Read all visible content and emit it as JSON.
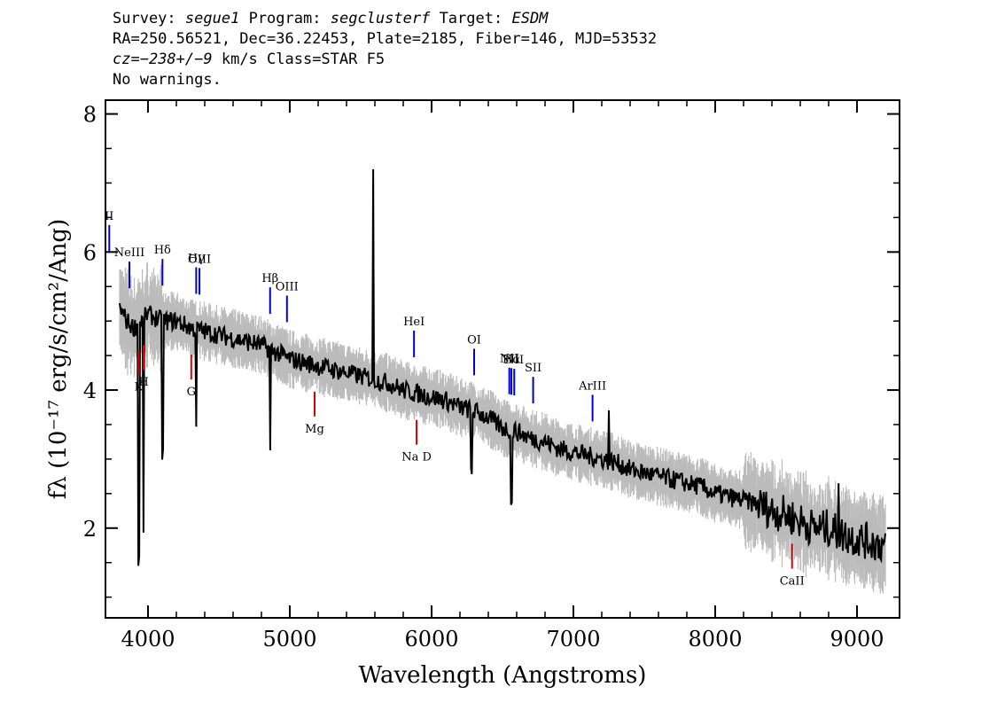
{
  "header": {
    "survey_label": "Survey:",
    "survey": "segue1",
    "program_label": "Program:",
    "program": "segclusterf",
    "target_label": "Target:",
    "target": "ESDM",
    "line2": "RA=250.56521, Dec=36.22453, Plate=2185, Fiber=146, MJD=53532",
    "cz_prefix": "cz=",
    "cz_value": "−238+/−9",
    "cz_suffix": " km/s Class=STAR F5",
    "warnings": "No warnings."
  },
  "chart_data": {
    "type": "line",
    "xlabel": "Wavelength (Angstroms)",
    "ylabel": "fλ (10⁻¹⁷ erg/s/cm²/Ang)",
    "xlim": [
      3700,
      9300
    ],
    "ylim": [
      0.7,
      8.2
    ],
    "x_ticks": [
      "4000",
      "5000",
      "6000",
      "7000",
      "8000",
      "9000"
    ],
    "y_ticks": [
      "2",
      "4",
      "6",
      "8"
    ],
    "series": [
      {
        "role": "smoothed flux",
        "color": "#000000",
        "x": [
          3800,
          3850,
          3900,
          3950,
          4000,
          4100,
          4200,
          4300,
          4400,
          4500,
          4600,
          4700,
          4800,
          4900,
          5000,
          5100,
          5200,
          5300,
          5400,
          5500,
          5600,
          5700,
          5800,
          5900,
          6000,
          6100,
          6200,
          6300,
          6400,
          6500,
          6600,
          6700,
          6800,
          6900,
          7000,
          7100,
          7200,
          7300,
          7400,
          7500,
          7600,
          7700,
          7800,
          7900,
          8000,
          8100,
          8200,
          8300,
          8400,
          8500,
          8600,
          8700,
          8800,
          8900,
          9000,
          9100,
          9200
        ],
        "y": [
          5.2,
          5.0,
          4.9,
          5.0,
          5.1,
          5.0,
          5.0,
          4.9,
          4.85,
          4.8,
          4.75,
          4.7,
          4.65,
          4.55,
          4.45,
          4.4,
          4.35,
          4.3,
          4.25,
          4.2,
          4.15,
          4.1,
          4.0,
          3.95,
          3.9,
          3.85,
          3.75,
          3.7,
          3.6,
          3.45,
          3.4,
          3.3,
          3.25,
          3.15,
          3.1,
          3.05,
          3.0,
          2.95,
          2.85,
          2.8,
          2.75,
          2.7,
          2.65,
          2.6,
          2.5,
          2.45,
          2.4,
          2.35,
          2.25,
          2.2,
          2.1,
          2.0,
          2.0,
          1.9,
          1.85,
          1.8,
          1.75
        ]
      }
    ],
    "emission_lines": [
      {
        "label": "II",
        "x": 3727
      },
      {
        "label": "NeIII",
        "x": 3869
      },
      {
        "label": "Hδ",
        "x": 4102
      },
      {
        "label": "Hγ",
        "x": 4340
      },
      {
        "label": "OIII",
        "x": 4363
      },
      {
        "label": "Hβ",
        "x": 4861
      },
      {
        "label": "OIII",
        "x": 4980
      },
      {
        "label": "HeI",
        "x": 5876
      },
      {
        "label": "OI",
        "x": 6300
      },
      {
        "label": "NII",
        "x": 6548
      },
      {
        "label": "Hα",
        "x": 6563
      },
      {
        "label": "NII",
        "x": 6583
      },
      {
        "label": "SII",
        "x": 6716
      },
      {
        "label": "ArIII",
        "x": 7135
      }
    ],
    "absorption_lines": [
      {
        "label": "K",
        "x": 3934
      },
      {
        "label": "H",
        "x": 3969
      },
      {
        "label": "G",
        "x": 4305
      },
      {
        "label": "Mg",
        "x": 5175
      },
      {
        "label": "Na D",
        "x": 5894
      },
      {
        "label": "CaII",
        "x": 8542
      }
    ],
    "colors": {
      "emission": "#0000cc",
      "absorption": "#dd0000",
      "noise": "#bbbbbb",
      "flux": "#000000"
    }
  }
}
